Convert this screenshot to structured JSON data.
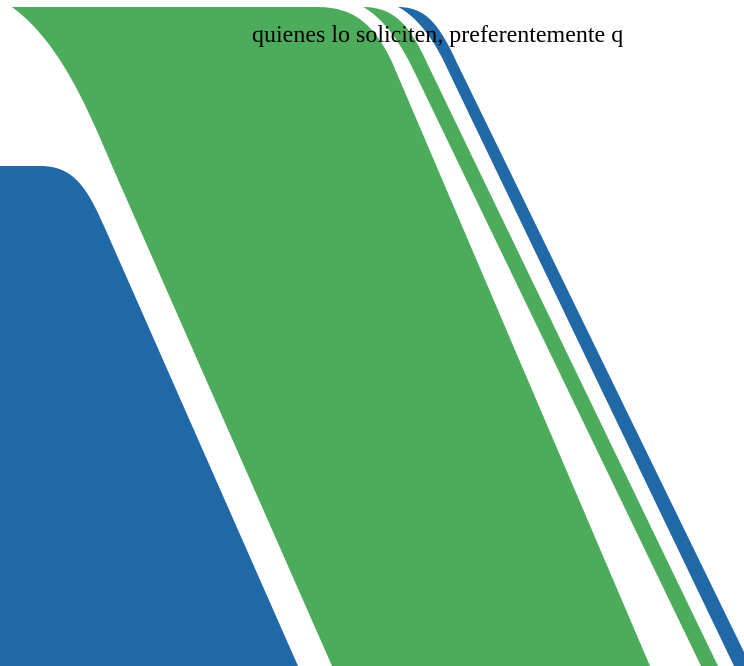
{
  "document": {
    "text_line": "quienes lo soliciten, preferentemente q"
  },
  "colors": {
    "green": "#4dac5b",
    "blue": "#2168a6",
    "background": "#ffffff",
    "text": "#000000"
  }
}
